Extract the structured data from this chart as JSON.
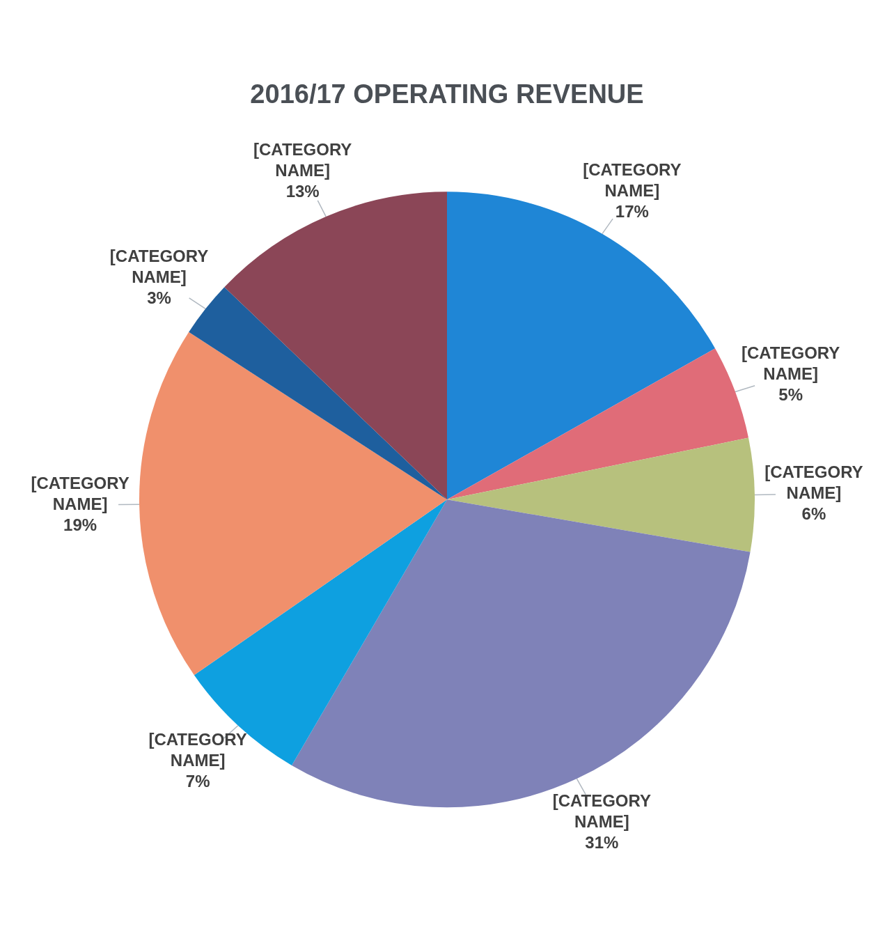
{
  "chart_data": {
    "type": "pie",
    "title": "2016/17 OPERATING REVENUE",
    "categories": [
      "[CATEGORY NAME]",
      "[CATEGORY NAME]",
      "[CATEGORY NAME]",
      "[CATEGORY NAME]",
      "[CATEGORY NAME]",
      "[CATEGORY NAME]",
      "[CATEGORY NAME]",
      "[CATEGORY NAME]"
    ],
    "values": [
      17,
      5,
      6,
      31,
      7,
      19,
      3,
      13
    ],
    "value_labels": [
      "17%",
      "5%",
      "6%",
      "31%",
      "7%",
      "19%",
      "3%",
      "13%"
    ],
    "colors": [
      "#1f86d6",
      "#e06c78",
      "#b7c17d",
      "#7f82b8",
      "#0ea0e0",
      "#f0906c",
      "#1e5f9e",
      "#8b4657"
    ],
    "legend": false
  }
}
